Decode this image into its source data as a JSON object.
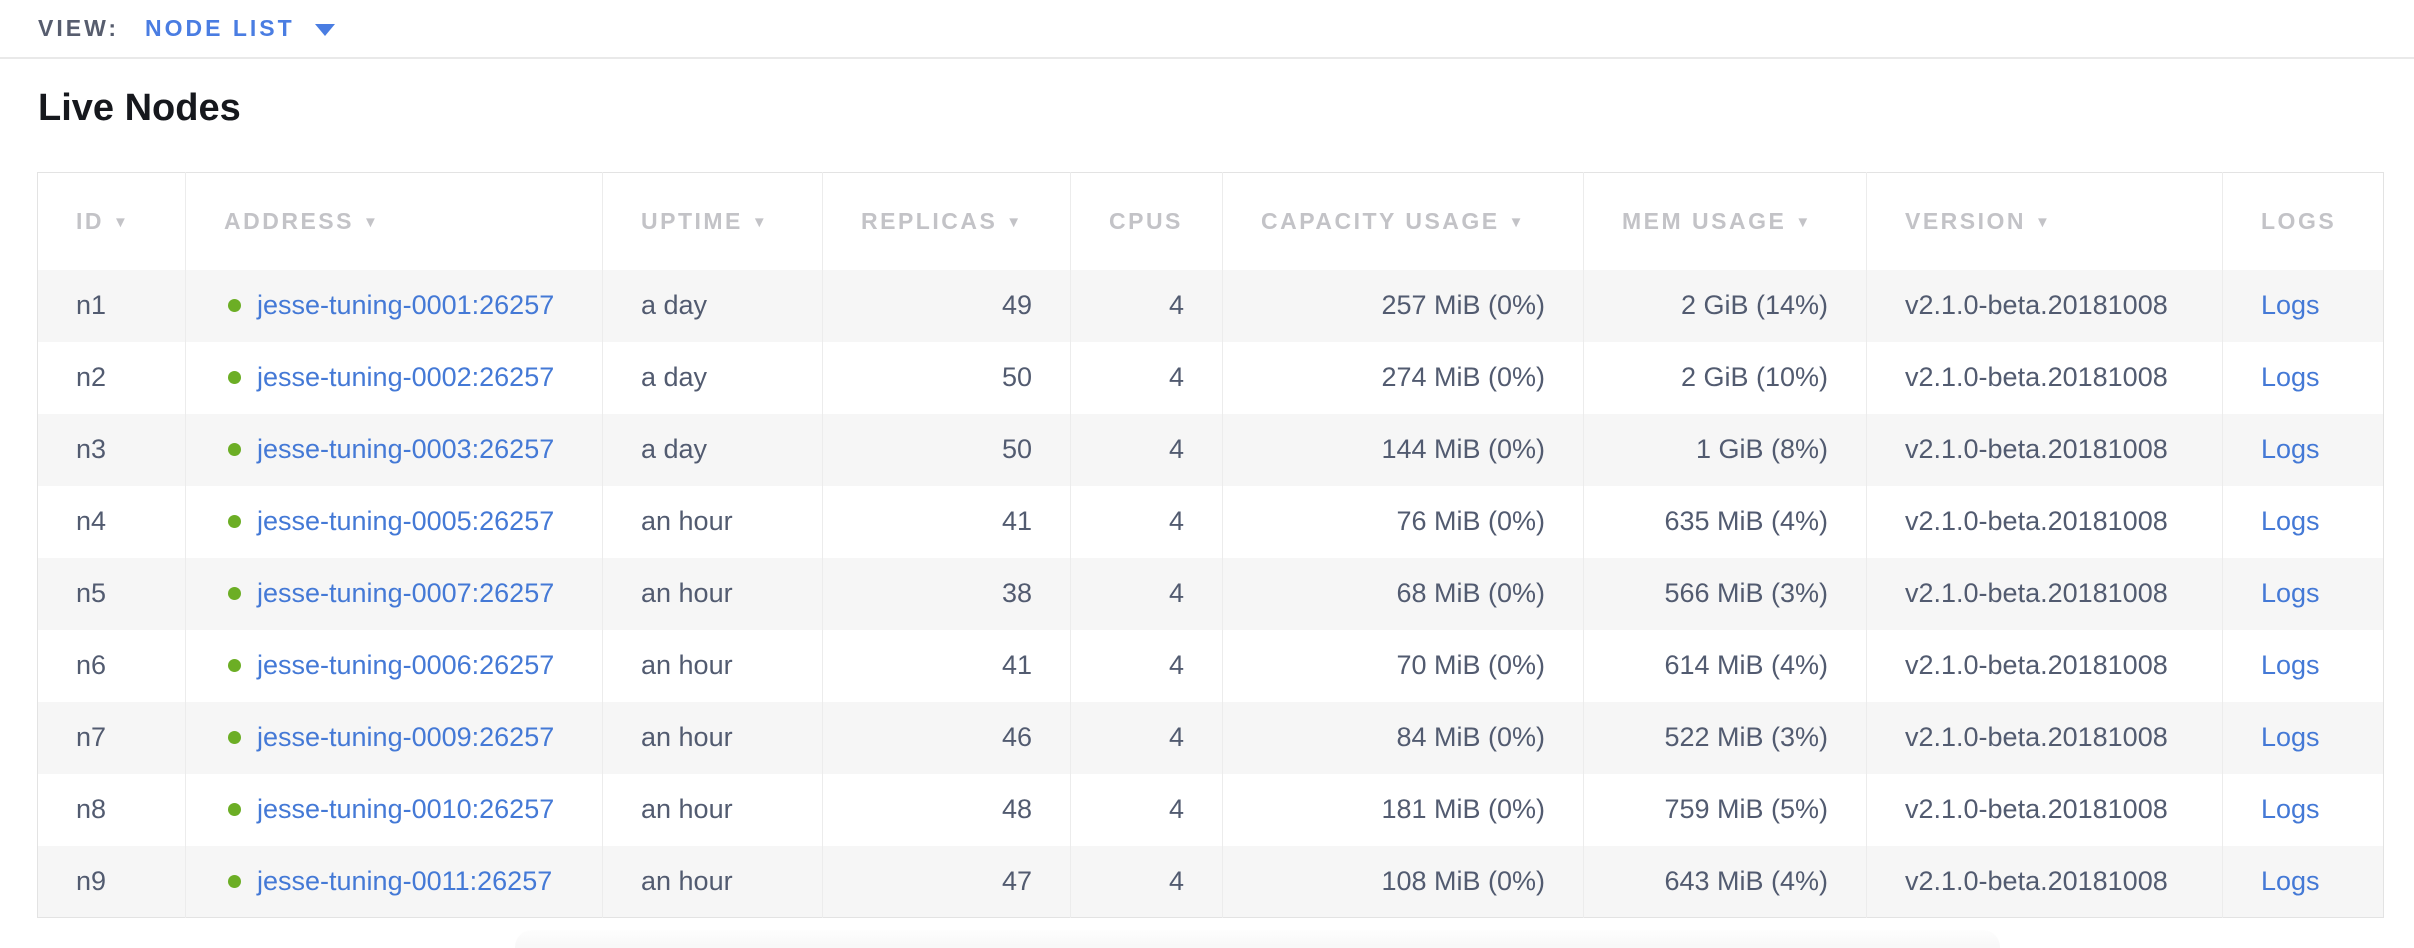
{
  "topbar": {
    "view_label": "VIEW:",
    "selected_view": "NODE LIST"
  },
  "page": {
    "title": "Live Nodes"
  },
  "table": {
    "columns": [
      {
        "key": "id",
        "label": "ID",
        "sortable": true
      },
      {
        "key": "address",
        "label": "ADDRESS",
        "sortable": true
      },
      {
        "key": "uptime",
        "label": "UPTIME",
        "sortable": true
      },
      {
        "key": "replicas",
        "label": "REPLICAS",
        "sortable": true
      },
      {
        "key": "cpus",
        "label": "CPUS",
        "sortable": false
      },
      {
        "key": "capacity",
        "label": "CAPACITY USAGE",
        "sortable": true
      },
      {
        "key": "mem",
        "label": "MEM USAGE",
        "sortable": true
      },
      {
        "key": "version",
        "label": "VERSION",
        "sortable": true
      },
      {
        "key": "logs",
        "label": "LOGS",
        "sortable": false
      }
    ],
    "nodes": [
      {
        "id": "n1",
        "address": "jesse-tuning-0001:26257",
        "status": "healthy",
        "uptime": "a day",
        "replicas": "49",
        "cpus": "4",
        "capacity": "257 MiB (0%)",
        "mem": "2 GiB (14%)",
        "version": "v2.1.0-beta.20181008",
        "logs": "Logs"
      },
      {
        "id": "n2",
        "address": "jesse-tuning-0002:26257",
        "status": "healthy",
        "uptime": "a day",
        "replicas": "50",
        "cpus": "4",
        "capacity": "274 MiB (0%)",
        "mem": "2 GiB (10%)",
        "version": "v2.1.0-beta.20181008",
        "logs": "Logs"
      },
      {
        "id": "n3",
        "address": "jesse-tuning-0003:26257",
        "status": "healthy",
        "uptime": "a day",
        "replicas": "50",
        "cpus": "4",
        "capacity": "144 MiB (0%)",
        "mem": "1 GiB (8%)",
        "version": "v2.1.0-beta.20181008",
        "logs": "Logs"
      },
      {
        "id": "n4",
        "address": "jesse-tuning-0005:26257",
        "status": "healthy",
        "uptime": "an hour",
        "replicas": "41",
        "cpus": "4",
        "capacity": "76 MiB (0%)",
        "mem": "635 MiB (4%)",
        "version": "v2.1.0-beta.20181008",
        "logs": "Logs"
      },
      {
        "id": "n5",
        "address": "jesse-tuning-0007:26257",
        "status": "healthy",
        "uptime": "an hour",
        "replicas": "38",
        "cpus": "4",
        "capacity": "68 MiB (0%)",
        "mem": "566 MiB (3%)",
        "version": "v2.1.0-beta.20181008",
        "logs": "Logs"
      },
      {
        "id": "n6",
        "address": "jesse-tuning-0006:26257",
        "status": "healthy",
        "uptime": "an hour",
        "replicas": "41",
        "cpus": "4",
        "capacity": "70 MiB (0%)",
        "mem": "614 MiB (4%)",
        "version": "v2.1.0-beta.20181008",
        "logs": "Logs"
      },
      {
        "id": "n7",
        "address": "jesse-tuning-0009:26257",
        "status": "healthy",
        "uptime": "an hour",
        "replicas": "46",
        "cpus": "4",
        "capacity": "84 MiB (0%)",
        "mem": "522 MiB (3%)",
        "version": "v2.1.0-beta.20181008",
        "logs": "Logs"
      },
      {
        "id": "n8",
        "address": "jesse-tuning-0010:26257",
        "status": "healthy",
        "uptime": "an hour",
        "replicas": "48",
        "cpus": "4",
        "capacity": "181 MiB (0%)",
        "mem": "759 MiB (5%)",
        "version": "v2.1.0-beta.20181008",
        "logs": "Logs"
      },
      {
        "id": "n9",
        "address": "jesse-tuning-0011:26257",
        "status": "healthy",
        "uptime": "an hour",
        "replicas": "47",
        "cpus": "4",
        "capacity": "108 MiB (0%)",
        "mem": "643 MiB (4%)",
        "version": "v2.1.0-beta.20181008",
        "logs": "Logs"
      }
    ]
  },
  "colors": {
    "accent_blue": "#4a7de2",
    "link_blue": "#4479d6",
    "healthy_green": "#6cae25",
    "header_gray": "#c3c3c7",
    "body_text": "#525b70",
    "alt_row_bg": "#f6f6f6"
  }
}
